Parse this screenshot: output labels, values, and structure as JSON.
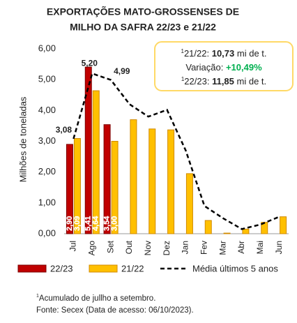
{
  "chart_data": {
    "type": "bar",
    "title": [
      "EXPORTAÇÕES MATO-GROSSENSES DE",
      "MILHO DA SAFRA 22/23 e 21/22"
    ],
    "y_label": "Milhões de toneladas",
    "categories": [
      "Jul",
      "Ago",
      "Set",
      "Out",
      "Nov",
      "Dez",
      "Jan",
      "Fev",
      "Mar",
      "Abr",
      "Mai",
      "Jun"
    ],
    "series": [
      {
        "name": "22/23",
        "type": "bar",
        "color": "#c00000",
        "values": [
          2.9,
          5.41,
          3.54,
          null,
          null,
          null,
          null,
          null,
          null,
          null,
          null,
          null
        ],
        "value_labels": [
          "2,90",
          "5,41",
          "3,54",
          null,
          null,
          null,
          null,
          null,
          null,
          null,
          null,
          null
        ]
      },
      {
        "name": "21/22",
        "type": "bar",
        "color": "#ffc000",
        "values": [
          3.09,
          4.64,
          3.0,
          3.7,
          3.4,
          3.37,
          1.95,
          0.43,
          0.02,
          0.15,
          0.37,
          0.55
        ],
        "value_labels": [
          "3,09",
          "4,64",
          "3,00",
          null,
          null,
          null,
          null,
          null,
          null,
          null,
          null,
          null
        ]
      },
      {
        "name": "Média últimos 5 anos",
        "type": "line",
        "color": "#000000",
        "values": [
          3.08,
          5.2,
          4.99,
          4.2,
          3.8,
          4.02,
          2.7,
          0.9,
          0.5,
          0.15,
          0.3,
          0.55
        ],
        "value_labels": [
          "3,08",
          "5,20",
          "4,99",
          null,
          null,
          null,
          null,
          null,
          null,
          null,
          null,
          null
        ]
      }
    ],
    "ylim": [
      0,
      6
    ],
    "yticks": [
      {
        "value": 0,
        "label": "0,00"
      },
      {
        "value": 1,
        "label": "1,00"
      },
      {
        "value": 2,
        "label": "2,00"
      },
      {
        "value": 3,
        "label": "3,00"
      },
      {
        "value": 4,
        "label": "4,00"
      },
      {
        "value": 5,
        "label": "5,00"
      },
      {
        "value": 6,
        "label": "6,00"
      }
    ],
    "summary": [
      {
        "sup": "1",
        "label": "21/22:",
        "value": "10,73",
        "unit": "mi de t."
      },
      {
        "label": "Variação:",
        "value": "+10,49%"
      },
      {
        "sup": "1",
        "label": "22/23:",
        "value": "11,85",
        "unit": "mi de t."
      }
    ],
    "footnotes": [
      {
        "sup": "1",
        "text": "Acumulado de jullho a setembro."
      },
      {
        "text": "Fonte: Secex (Data de acesso: 06/10/2023)."
      }
    ]
  }
}
